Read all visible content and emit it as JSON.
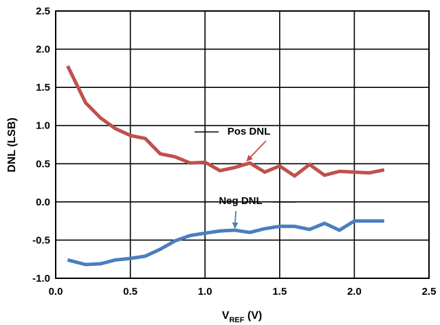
{
  "chart_data": {
    "type": "line",
    "xlabel_main": "V",
    "xlabel_sub": "REF",
    "xlabel_tail": " (V)",
    "ylabel": "DNL (LSB)",
    "xlim": [
      0.0,
      2.5
    ],
    "ylim": [
      -1.0,
      2.5
    ],
    "xticks": [
      0.0,
      0.5,
      1.0,
      1.5,
      2.0,
      2.5
    ],
    "xtick_labels": [
      "0.0",
      "0.5",
      "1.0",
      "1.5",
      "2.0",
      "2.5"
    ],
    "yticks": [
      -1.0,
      -0.5,
      0.0,
      0.5,
      1.0,
      1.5,
      2.0,
      2.5
    ],
    "ytick_labels": [
      "-1.0",
      "-0.5",
      "0.0",
      "0.5",
      "1.0",
      "1.5",
      "2.0",
      "2.5"
    ],
    "grid": true,
    "series": [
      {
        "name": "Pos DNL",
        "color": "#c0504d",
        "x": [
          0.08,
          0.2,
          0.3,
          0.4,
          0.5,
          0.6,
          0.7,
          0.8,
          0.9,
          1.0,
          1.1,
          1.2,
          1.3,
          1.4,
          1.5,
          1.6,
          1.7,
          1.8,
          1.9,
          2.0,
          2.1,
          2.2
        ],
        "y": [
          1.78,
          1.3,
          1.1,
          0.96,
          0.87,
          0.83,
          0.63,
          0.59,
          0.51,
          0.52,
          0.41,
          0.45,
          0.51,
          0.39,
          0.47,
          0.34,
          0.49,
          0.35,
          0.4,
          0.39,
          0.38,
          0.42
        ]
      },
      {
        "name": "Neg DNL",
        "color": "#4a7ebf",
        "x": [
          0.08,
          0.2,
          0.3,
          0.4,
          0.5,
          0.6,
          0.7,
          0.8,
          0.9,
          1.0,
          1.1,
          1.2,
          1.3,
          1.4,
          1.5,
          1.6,
          1.7,
          1.8,
          1.9,
          2.0,
          2.1,
          2.2
        ],
        "y": [
          -0.76,
          -0.82,
          -0.81,
          -0.76,
          -0.74,
          -0.71,
          -0.62,
          -0.51,
          -0.44,
          -0.41,
          -0.38,
          -0.37,
          -0.4,
          -0.35,
          -0.32,
          -0.32,
          -0.36,
          -0.28,
          -0.37,
          -0.25,
          -0.25,
          -0.25
        ]
      }
    ],
    "annotations": [
      {
        "text": "Pos DNL",
        "target": [
          1.28,
          0.51
        ],
        "color": "#c0504d"
      },
      {
        "text": "Neg DNL",
        "target": [
          1.2,
          -0.37
        ],
        "color": "#4a7ebf"
      }
    ]
  }
}
